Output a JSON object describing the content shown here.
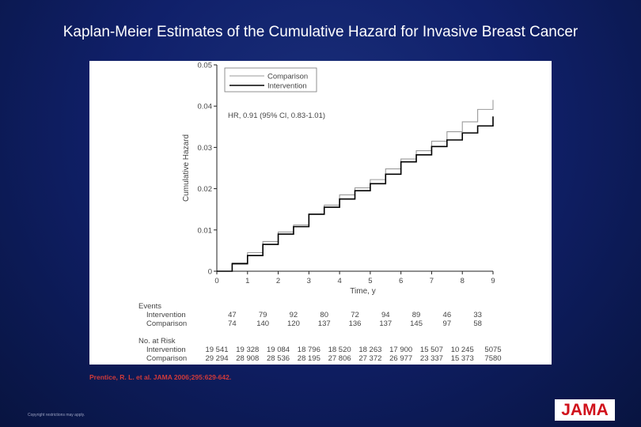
{
  "slide": {
    "title": "Kaplan-Meier Estimates of the Cumulative Hazard for Invasive Breast Cancer",
    "citation": "Prentice, R. L. et al. JAMA 2006;295:629-642.",
    "copyright": "Copyright restrictions may apply.",
    "logo_text": "JAMA",
    "colors": {
      "background": "#10206a",
      "title": "#ffffff",
      "citation": "#d13a3a",
      "logo": "#d0101a"
    }
  },
  "chart_data": {
    "type": "line",
    "title": "",
    "xlabel": "Time, y",
    "ylabel": "Cumulative Hazard",
    "xlim": [
      0,
      9
    ],
    "ylim": [
      0,
      0.05
    ],
    "x_ticks": [
      "0",
      "1",
      "2",
      "3",
      "4",
      "5",
      "6",
      "7",
      "8",
      "9"
    ],
    "y_ticks": [
      "0",
      "0.01",
      "0.02",
      "0.03",
      "0.04",
      "0.05"
    ],
    "legend_position": "top-left",
    "annotation": "HR, 0.91 (95% CI, 0.83-1.01)",
    "series": [
      {
        "name": "Comparison",
        "color": "#9a9a9a",
        "x": [
          0,
          0.5,
          1,
          1.5,
          2,
          2.5,
          3,
          3.5,
          4,
          4.5,
          5,
          5.5,
          6,
          6.5,
          7,
          7.5,
          8,
          8.5,
          9
        ],
        "y": [
          0,
          0.002,
          0.0045,
          0.0072,
          0.0095,
          0.0112,
          0.0138,
          0.016,
          0.0185,
          0.0202,
          0.0222,
          0.0248,
          0.0272,
          0.0292,
          0.0315,
          0.0338,
          0.0362,
          0.0392,
          0.0415
        ]
      },
      {
        "name": "Intervention",
        "color": "#000000",
        "x": [
          0,
          0.5,
          1,
          1.5,
          2,
          2.5,
          3,
          3.5,
          4,
          4.5,
          5,
          5.5,
          6,
          6.5,
          7,
          7.5,
          8,
          8.5,
          9
        ],
        "y": [
          0,
          0.0018,
          0.0038,
          0.0065,
          0.009,
          0.0108,
          0.0138,
          0.0155,
          0.0175,
          0.0195,
          0.0212,
          0.0235,
          0.0265,
          0.0282,
          0.0302,
          0.0318,
          0.0335,
          0.0352,
          0.0375
        ]
      }
    ],
    "risk_table": {
      "events_label": "Events",
      "at_risk_label": "No. at Risk",
      "events": [
        {
          "label": "Intervention",
          "values": [
            "47",
            "79",
            "92",
            "80",
            "72",
            "94",
            "89",
            "46",
            "33"
          ]
        },
        {
          "label": "Comparison",
          "values": [
            "74",
            "140",
            "120",
            "137",
            "136",
            "137",
            "145",
            "97",
            "58"
          ]
        }
      ],
      "at_risk": [
        {
          "label": "Intervention",
          "values": [
            "19 541",
            "19 328",
            "19 084",
            "18 796",
            "18 520",
            "18 263",
            "17 900",
            "15 507",
            "10 245",
            "5075"
          ]
        },
        {
          "label": "Comparison",
          "values": [
            "29 294",
            "28 908",
            "28 536",
            "28 195",
            "27 806",
            "27 372",
            "26 977",
            "23 337",
            "15 373",
            "7580"
          ]
        }
      ]
    }
  }
}
